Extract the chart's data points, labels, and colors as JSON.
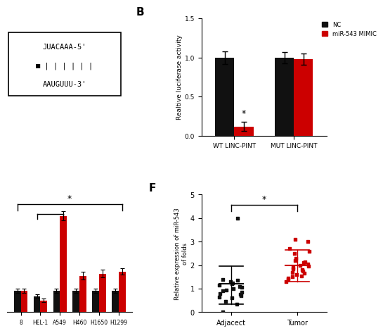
{
  "panel_B": {
    "categories": [
      "WT LINC-PINT",
      "MUT LINC-PINT"
    ],
    "NC_values": [
      1.0,
      1.0
    ],
    "NC_errors": [
      0.08,
      0.07
    ],
    "mimic_values": [
      0.12,
      0.98
    ],
    "mimic_errors": [
      0.06,
      0.07
    ],
    "ylabel": "Realtive luciferase activity",
    "ylim": [
      0,
      1.5
    ],
    "yticks": [
      0.0,
      0.5,
      1.0,
      1.5
    ],
    "nc_color": "#111111",
    "mimic_color": "#cc0000",
    "legend_nc": "NC",
    "legend_mimic": "miR-543 MIMIC"
  },
  "panel_F": {
    "ylabel": "Relative expression of miR-543\nof folds",
    "ylim": [
      0,
      5
    ],
    "yticks": [
      0,
      1,
      2,
      3,
      4,
      5
    ],
    "categories": [
      "Adjacect",
      "Tumor"
    ],
    "adjacent_points": [
      0.0,
      0.35,
      0.45,
      0.6,
      0.65,
      0.7,
      0.75,
      0.8,
      0.85,
      0.9,
      0.95,
      1.0,
      1.05,
      1.1,
      1.15,
      1.2,
      1.25,
      1.3,
      1.35,
      1.4,
      4.0
    ],
    "adjacent_mean": 1.2,
    "adjacent_sd_low": 0.35,
    "adjacent_sd_high": 1.95,
    "tumor_points": [
      1.3,
      1.4,
      1.45,
      1.5,
      1.55,
      1.6,
      1.65,
      1.7,
      1.75,
      1.8,
      1.85,
      1.9,
      1.95,
      2.0,
      2.05,
      2.1,
      2.15,
      2.2,
      2.3,
      2.5,
      2.6,
      2.7,
      3.0,
      3.1
    ],
    "tumor_mean": 2.0,
    "tumor_sd_low": 1.3,
    "tumor_sd_high": 2.65,
    "adjacent_color": "#111111",
    "tumor_color": "#cc0000"
  },
  "panel_A_text": {
    "line1": "JUACAAA-5'",
    "line2": "| | | | | |",
    "line3": "AAUGUUU-3'"
  },
  "panel_E_bar": {
    "categories": [
      "8",
      "HEL-1",
      "A549",
      "H460",
      "H1650",
      "H1299"
    ],
    "nc_vals": [
      1.0,
      0.75,
      1.0,
      1.0,
      1.0,
      1.0
    ],
    "nc_errs": [
      0.1,
      0.08,
      0.1,
      0.1,
      0.1,
      0.1
    ],
    "mimic_vals": [
      1.0,
      0.55,
      4.5,
      1.7,
      1.8,
      1.9
    ],
    "mimic_errs": [
      0.1,
      0.08,
      0.22,
      0.18,
      0.18,
      0.16
    ],
    "nc_color": "#111111",
    "mimic_color": "#cc0000"
  },
  "bg_color": "#ffffff"
}
